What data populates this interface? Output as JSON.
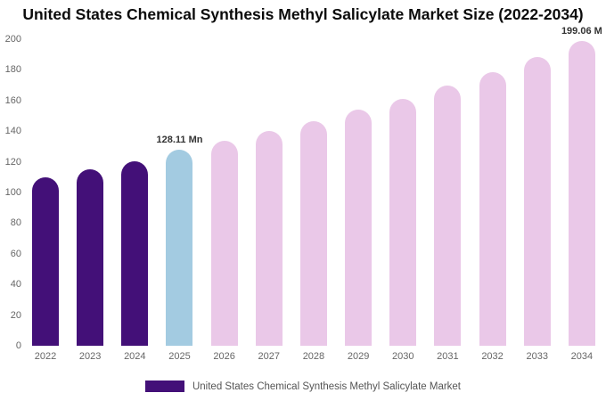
{
  "title": "United States Chemical Synthesis Methyl Salicylate Market Size (2022-2034)",
  "colors": {
    "dark_purple": "#431078",
    "light_blue": "#a3cbe1",
    "light_pink": "#eac8e8",
    "tick_text": "#666666",
    "label_text": "#333333"
  },
  "legend": {
    "label": "United States Chemical Synthesis Methyl Salicylate Market",
    "swatch_color": "#431078"
  },
  "chart_data": {
    "type": "bar",
    "title": "United States Chemical Synthesis Methyl Salicylate Market Size (2022-2034)",
    "xlabel": "",
    "ylabel": "",
    "ylim": [
      0,
      200
    ],
    "yticks": [
      0,
      20,
      40,
      60,
      80,
      100,
      120,
      140,
      160,
      180,
      200
    ],
    "grid": false,
    "legend_position": "bottom",
    "categories": [
      "2022",
      "2023",
      "2024",
      "2025",
      "2026",
      "2027",
      "2028",
      "2029",
      "2030",
      "2031",
      "2032",
      "2033",
      "2034"
    ],
    "values": [
      109.8,
      115.2,
      120.6,
      128.11,
      133.7,
      139.9,
      146.4,
      153.8,
      161.2,
      169.9,
      178.4,
      188.1,
      199.06
    ],
    "bar_colors": [
      "#431078",
      "#431078",
      "#431078",
      "#a3cbe1",
      "#eac8e8",
      "#eac8e8",
      "#eac8e8",
      "#eac8e8",
      "#eac8e8",
      "#eac8e8",
      "#eac8e8",
      "#eac8e8",
      "#eac8e8"
    ],
    "annotations": [
      {
        "category": "2025",
        "text": "128.11 Mn"
      },
      {
        "category": "2034",
        "text": "199.06 M"
      }
    ]
  }
}
